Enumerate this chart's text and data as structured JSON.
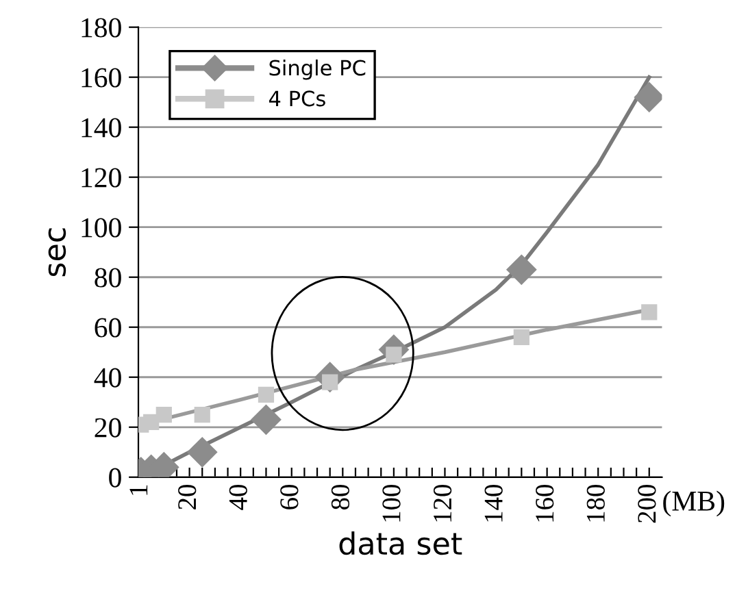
{
  "chart_data": {
    "type": "scatter",
    "xlabel": "data set",
    "ylabel": "sec",
    "annotations": [
      "(MB)"
    ],
    "xlim": [
      0,
      205
    ],
    "ylim": [
      0,
      180
    ],
    "xticks": [
      1,
      {
        "value": 5,
        "label": null
      },
      {
        "value": 10,
        "label": null
      },
      {
        "value": 15,
        "label": null
      },
      20,
      {
        "value": 25,
        "label": null
      },
      {
        "value": 30,
        "label": null
      },
      {
        "value": 35,
        "label": null
      },
      40,
      {
        "value": 45,
        "label": null
      },
      {
        "value": 50,
        "label": null
      },
      {
        "value": 55,
        "label": null
      },
      60,
      {
        "value": 65,
        "label": null
      },
      {
        "value": 70,
        "label": null
      },
      {
        "value": 75,
        "label": null
      },
      80,
      {
        "value": 85,
        "label": null
      },
      {
        "value": 90,
        "label": null
      },
      {
        "value": 95,
        "label": null
      },
      100,
      {
        "value": 105,
        "label": null
      },
      {
        "value": 110,
        "label": null
      },
      {
        "value": 115,
        "label": null
      },
      120,
      {
        "value": 125,
        "label": null
      },
      {
        "value": 130,
        "label": null
      },
      {
        "value": 135,
        "label": null
      },
      140,
      {
        "value": 145,
        "label": null
      },
      {
        "value": 150,
        "label": null
      },
      {
        "value": 155,
        "label": null
      },
      160,
      {
        "value": 165,
        "label": null
      },
      {
        "value": 170,
        "label": null
      },
      {
        "value": 175,
        "label": null
      },
      180,
      {
        "value": 185,
        "label": null
      },
      {
        "value": 190,
        "label": null
      },
      {
        "value": 195,
        "label": null
      },
      200
    ],
    "yticks": [
      0,
      20,
      40,
      60,
      80,
      100,
      120,
      140,
      160,
      180
    ],
    "grid": "y",
    "legend": "top left",
    "series": [
      {
        "name": "Single PC",
        "color": "#8c8c8c",
        "marker": "diamond",
        "x": [
          1,
          5,
          10,
          25,
          50,
          75,
          100,
          150,
          200
        ],
        "values": [
          2,
          3,
          4,
          10,
          23,
          40,
          51,
          83,
          152
        ]
      },
      {
        "name": "4 PCs",
        "color": "#c8c8c8",
        "marker": "square",
        "x": [
          1,
          5,
          10,
          25,
          50,
          75,
          100,
          150,
          200
        ],
        "values": [
          21,
          22,
          25,
          25,
          33,
          38,
          49,
          56,
          66
        ]
      },
      {
        "type": "line",
        "color": "#7a7a7a",
        "marker": "none",
        "x": [
          1,
          20,
          40,
          60,
          85,
          100,
          120,
          140,
          150,
          160,
          180,
          200
        ],
        "values": [
          0,
          10,
          20,
          30,
          43,
          50,
          60,
          75,
          85,
          98,
          125,
          160
        ]
      },
      {
        "type": "line",
        "color": "#9a9a9a",
        "marker": "none",
        "x": [
          1,
          40,
          85,
          120,
          160,
          200
        ],
        "values": [
          21,
          31,
          43,
          50,
          59,
          67
        ]
      }
    ]
  }
}
